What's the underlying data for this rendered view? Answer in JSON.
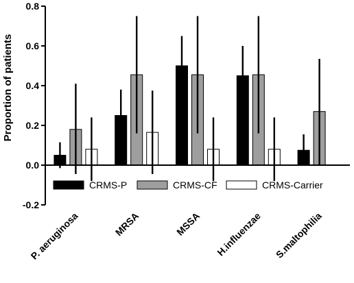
{
  "chart_data": {
    "type": "bar",
    "title": "",
    "xlabel": "",
    "ylabel": "Proportion of patients",
    "ylim": [
      -0.2,
      0.8
    ],
    "yticks": [
      "-0.2",
      "0.0",
      "0.2",
      "0.4",
      "0.6",
      "0.8"
    ],
    "categories": [
      "P. aeruginosa",
      "MRSA",
      "MSSA",
      "H.influenzae",
      "S.maltophilia"
    ],
    "series": [
      {
        "name": "CRMS-P",
        "color": "#000000",
        "values": [
          0.05,
          0.25,
          0.5,
          0.45,
          0.075
        ],
        "error_low": [
          -0.015,
          0.12,
          0.35,
          0.3,
          0.0
        ],
        "error_high": [
          0.115,
          0.38,
          0.65,
          0.6,
          0.155
        ]
      },
      {
        "name": "CRMS-CF",
        "color": "#9e9e9e",
        "values": [
          0.18,
          0.455,
          0.455,
          0.455,
          0.27
        ],
        "error_low": [
          -0.045,
          0.16,
          0.16,
          0.16,
          0.0
        ],
        "error_high": [
          0.41,
          0.75,
          0.75,
          0.75,
          0.535
        ]
      },
      {
        "name": "CRMS-Carrier",
        "color": "#ffffff",
        "values": [
          0.08,
          0.165,
          0.08,
          0.08,
          null
        ],
        "error_low": [
          -0.08,
          -0.045,
          -0.08,
          -0.08,
          null
        ],
        "error_high": [
          0.24,
          0.375,
          0.24,
          0.24,
          null
        ]
      }
    ],
    "legend_position": "bottom-inside",
    "grid": false
  }
}
